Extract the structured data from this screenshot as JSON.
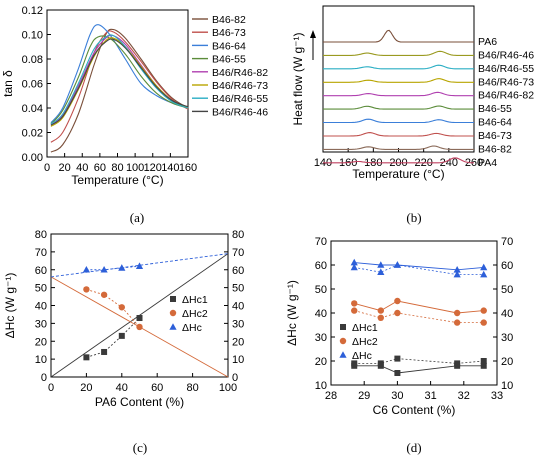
{
  "panels": {
    "a": {
      "label": "(a)"
    },
    "b": {
      "label": "(b)"
    },
    "c": {
      "label": "(c)"
    },
    "d": {
      "label": "(d)"
    }
  },
  "chart_data": [
    {
      "panel": "a",
      "type": "line",
      "xlabel": "Temperature (°C)",
      "ylabel": "tan δ",
      "xlim": [
        -20,
        160
      ],
      "ylim": [
        0,
        0.12
      ],
      "xticks": [
        "0",
        "20",
        "40",
        "60",
        "80",
        "100",
        "120",
        "140",
        "160"
      ],
      "yticks": [
        "0.00",
        "0.02",
        "0.04",
        "0.06",
        "0.08",
        "0.10",
        "0.12"
      ],
      "legend_position": "right",
      "series": [
        {
          "name": "B46-82",
          "color": "#7a4f3a",
          "x": [
            -15,
            0,
            20,
            40,
            55,
            65,
            80,
            100,
            120,
            140,
            160
          ],
          "y": [
            0.004,
            0.01,
            0.035,
            0.075,
            0.1,
            0.104,
            0.097,
            0.08,
            0.062,
            0.048,
            0.04
          ]
        },
        {
          "name": "B46-73",
          "color": "#c0504d",
          "x": [
            -15,
            0,
            20,
            40,
            55,
            65,
            80,
            100,
            120,
            140,
            160
          ],
          "y": [
            0.012,
            0.02,
            0.048,
            0.085,
            0.101,
            0.102,
            0.094,
            0.078,
            0.061,
            0.047,
            0.039
          ]
        },
        {
          "name": "B46-64",
          "color": "#3b7fd9",
          "x": [
            -15,
            0,
            20,
            35,
            45,
            60,
            80,
            100,
            120,
            140,
            160
          ],
          "y": [
            0.028,
            0.04,
            0.072,
            0.1,
            0.108,
            0.1,
            0.08,
            0.06,
            0.05,
            0.044,
            0.04
          ]
        },
        {
          "name": "B46-55",
          "color": "#5b8c3a",
          "x": [
            -15,
            0,
            20,
            35,
            45,
            60,
            80,
            100,
            120,
            140,
            160
          ],
          "y": [
            0.027,
            0.038,
            0.065,
            0.09,
            0.098,
            0.097,
            0.084,
            0.066,
            0.052,
            0.044,
            0.04
          ]
        },
        {
          "name": "B46/R46-82",
          "color": "#b040b0",
          "x": [
            -15,
            0,
            20,
            40,
            55,
            65,
            80,
            100,
            120,
            140,
            160
          ],
          "y": [
            0.026,
            0.034,
            0.058,
            0.085,
            0.097,
            0.099,
            0.092,
            0.075,
            0.058,
            0.046,
            0.04
          ]
        },
        {
          "name": "B46/R46-73",
          "color": "#b8a500",
          "x": [
            -15,
            0,
            20,
            40,
            55,
            65,
            80,
            100,
            120,
            140,
            160
          ],
          "y": [
            0.025,
            0.032,
            0.055,
            0.082,
            0.095,
            0.097,
            0.09,
            0.074,
            0.058,
            0.046,
            0.04
          ]
        },
        {
          "name": "B46/R46-55",
          "color": "#2aaec4",
          "x": [
            -15,
            0,
            20,
            40,
            55,
            65,
            80,
            100,
            120,
            140,
            160
          ],
          "y": [
            0.027,
            0.035,
            0.06,
            0.088,
            0.098,
            0.099,
            0.09,
            0.072,
            0.056,
            0.045,
            0.04
          ]
        },
        {
          "name": "B46/R46-46",
          "color": "#444444",
          "x": [
            -15,
            0,
            20,
            40,
            55,
            65,
            80,
            100,
            120,
            140,
            160
          ],
          "y": [
            0.026,
            0.033,
            0.056,
            0.083,
            0.094,
            0.096,
            0.089,
            0.073,
            0.057,
            0.046,
            0.041
          ]
        }
      ]
    },
    {
      "panel": "b",
      "type": "line",
      "xlabel": "Temperature (°C)",
      "ylabel": "Heat flow (W g⁻¹)",
      "xlim": [
        140,
        260
      ],
      "xticks": [
        "140",
        "160",
        "180",
        "200",
        "220",
        "240",
        "260"
      ],
      "yticks": [],
      "annotations": [
        "Exo up arrow"
      ],
      "legend_position": "right",
      "series": [
        {
          "name": "PA6",
          "color": "#7a4f3a",
          "peaks": [
            [
              192,
              4.5
            ]
          ]
        },
        {
          "name": "B46/R46-46",
          "color": "#9a9a20",
          "peaks": [
            [
              175,
              0.9
            ],
            [
              233,
              1.6
            ]
          ]
        },
        {
          "name": "B46/R46-55",
          "color": "#2aaec4",
          "peaks": [
            [
              175,
              0.8
            ],
            [
              232,
              1.4
            ]
          ]
        },
        {
          "name": "B46/R46-73",
          "color": "#b8a500",
          "peaks": [
            [
              176,
              0.8
            ],
            [
              232,
              1.4
            ]
          ]
        },
        {
          "name": "B46/R46-82",
          "color": "#b040b0",
          "peaks": [
            [
              176,
              0.8
            ],
            [
              231,
              1.3
            ]
          ]
        },
        {
          "name": "B46-55",
          "color": "#5b8c3a",
          "peaks": [
            [
              175,
              1.1
            ],
            [
              232,
              1.2
            ]
          ]
        },
        {
          "name": "B46-64",
          "color": "#3b7fd9",
          "peaks": [
            [
              176,
              1.3
            ],
            [
              232,
              1.1
            ]
          ]
        },
        {
          "name": "B46-73",
          "color": "#c0504d",
          "peaks": [
            [
              177,
              1.3
            ],
            [
              230,
              1.0
            ]
          ]
        },
        {
          "name": "B46-82",
          "color": "#8b6b5a",
          "peaks": [
            [
              176,
              1.0
            ],
            [
              228,
              1.3
            ]
          ]
        },
        {
          "name": "PA4",
          "color": "#c04060",
          "peaks": [
            [
              168,
              0.5
            ],
            [
              245,
              1.9
            ]
          ]
        }
      ]
    },
    {
      "panel": "c",
      "type": "line",
      "xlabel": "PA6 Content (%)",
      "ylabel": "ΔHc (W g⁻¹)",
      "xlim": [
        0,
        100
      ],
      "ylim": [
        0,
        80
      ],
      "xticks": [
        "0",
        "20",
        "40",
        "60",
        "80",
        "100"
      ],
      "yticks": [
        "0",
        "10",
        "20",
        "30",
        "40",
        "50",
        "60",
        "70",
        "80"
      ],
      "legend_position": "center-right",
      "series": [
        {
          "name": "ΔHc1",
          "color": "#3a3a3a",
          "marker": "square",
          "x": [
            20,
            30,
            40,
            50
          ],
          "y": [
            11,
            14,
            23,
            33
          ]
        },
        {
          "name": "ΔHc2",
          "color": "#d46a3a",
          "marker": "circle",
          "x": [
            20,
            30,
            40,
            50
          ],
          "y": [
            49,
            46,
            39,
            28
          ]
        },
        {
          "name": "ΔHc",
          "color": "#2d5fd9",
          "marker": "triangle",
          "x": [
            20,
            30,
            40,
            50
          ],
          "y": [
            60,
            60,
            61,
            62
          ]
        }
      ],
      "reference_lines": [
        {
          "color": "#3a3a3a",
          "x": [
            0,
            100
          ],
          "y": [
            0,
            69
          ]
        },
        {
          "color": "#d46a3a",
          "x": [
            0,
            100
          ],
          "y": [
            56,
            0
          ]
        },
        {
          "color": "#2d5fd9",
          "x": [
            0,
            100
          ],
          "y": [
            56,
            69
          ]
        }
      ]
    },
    {
      "panel": "d",
      "type": "line",
      "xlabel": "C6 Content (%)",
      "ylabel": "ΔHc (W g⁻¹)",
      "xlim": [
        28,
        33
      ],
      "ylim": [
        10,
        70
      ],
      "xticks": [
        "28",
        "29",
        "30",
        "31",
        "32",
        "33"
      ],
      "yticks": [
        "10",
        "20",
        "30",
        "40",
        "50",
        "60",
        "70"
      ],
      "legend_position": "left",
      "series": [
        {
          "name": "ΔHc1",
          "color": "#3a3a3a",
          "marker": "square",
          "x": [
            28.7,
            29.5,
            30.0,
            31.8,
            32.6
          ],
          "y": [
            18,
            18,
            15,
            18,
            18
          ]
        },
        {
          "name": "ΔHc2",
          "color": "#d46a3a",
          "marker": "circle",
          "x": [
            28.7,
            29.5,
            30.0,
            31.8,
            32.6
          ],
          "y": [
            44,
            41,
            45,
            40,
            41
          ]
        },
        {
          "name": "ΔHc",
          "color": "#2d5fd9",
          "marker": "triangle",
          "x": [
            28.7,
            29.5,
            30.0,
            31.8,
            32.6
          ],
          "y": [
            61,
            60,
            60,
            58,
            59
          ]
        }
      ],
      "extra_points": [
        {
          "color": "#3a3a3a",
          "marker": "square",
          "x": [
            28.7,
            29.5,
            30.0,
            31.8,
            32.6
          ],
          "y": [
            19,
            19,
            21,
            19,
            20
          ]
        },
        {
          "color": "#d46a3a",
          "marker": "circle",
          "x": [
            28.7,
            29.5,
            30.0,
            31.8,
            32.6
          ],
          "y": [
            41,
            38,
            40,
            36,
            36
          ]
        },
        {
          "color": "#2d5fd9",
          "marker": "triangle",
          "x": [
            28.7,
            29.5,
            30.0,
            31.8,
            32.6
          ],
          "y": [
            59,
            57,
            60,
            56,
            56
          ]
        }
      ]
    }
  ]
}
